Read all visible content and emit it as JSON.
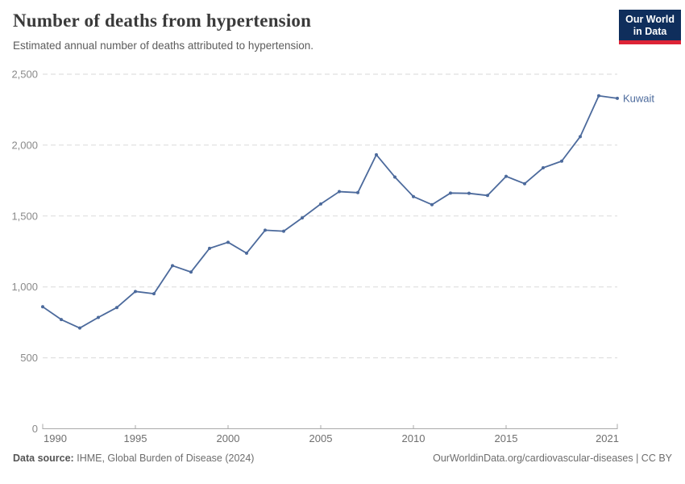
{
  "header": {
    "title": "Number of deaths from hypertension",
    "subtitle": "Estimated annual number of deaths attributed to hypertension.",
    "logo": {
      "line1": "Our World",
      "line2": "in Data"
    }
  },
  "chart_data": {
    "type": "line",
    "title": "Number of deaths from hypertension",
    "entity": "Kuwait",
    "x": [
      1990,
      1991,
      1992,
      1993,
      1994,
      1995,
      1996,
      1997,
      1998,
      1999,
      2000,
      2001,
      2002,
      2003,
      2004,
      2005,
      2006,
      2007,
      2008,
      2009,
      2010,
      2011,
      2012,
      2013,
      2014,
      2015,
      2016,
      2017,
      2018,
      2019,
      2020,
      2021
    ],
    "series": [
      {
        "name": "Kuwait",
        "color": "#4C6A9C",
        "values": [
          860,
          770,
          710,
          785,
          855,
          968,
          952,
          1150,
          1105,
          1272,
          1315,
          1238,
          1400,
          1393,
          1487,
          1585,
          1672,
          1665,
          1932,
          1775,
          1637,
          1580,
          1662,
          1660,
          1645,
          1780,
          1728,
          1840,
          1887,
          2060,
          2348,
          2330
        ]
      }
    ],
    "xlim": [
      1990,
      2021
    ],
    "ylim": [
      0,
      2500
    ],
    "x_ticks": [
      1990,
      1995,
      2000,
      2005,
      2010,
      2015,
      2021
    ],
    "y_ticks": [
      0,
      500,
      1000,
      1500,
      2000,
      2500
    ],
    "y_tick_labels": [
      "0",
      "500",
      "1,000",
      "1,500",
      "2,000",
      "2,500"
    ],
    "grid": "horizontal-dashed",
    "legend_position": "end-of-line-label"
  },
  "footer": {
    "source_label": "Data source:",
    "source_value": "IHME, Global Burden of Disease (2024)",
    "attribution": "OurWorldinData.org/cardiovascular-diseases | CC BY"
  },
  "colors": {
    "accent_line": "#4C6A9C",
    "logo_navy": "#0f2e5c",
    "logo_red": "#dd2437",
    "gridline": "#dadada",
    "axis": "#a9a9a9"
  }
}
